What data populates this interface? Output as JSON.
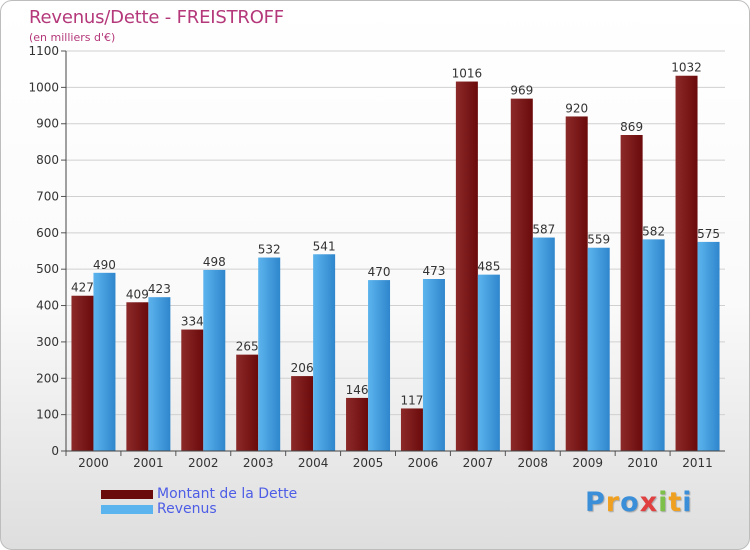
{
  "title": "Revenus/Dette - FREISTROFF",
  "subtitle": "(en milliers d'€)",
  "colors": {
    "dette": "#6b0a0a",
    "dette_light": "#8c2a2a",
    "revenus": "#2f86cc",
    "revenus_light": "#5cb4ee",
    "grid": "#d0d0d0",
    "text": "#333333"
  },
  "legend": {
    "items": [
      {
        "label": "Montant de la Dette"
      },
      {
        "label": "Revenus"
      }
    ]
  },
  "logo": {
    "letters": [
      {
        "ch": "P",
        "color": "#3a8fd8"
      },
      {
        "ch": "r",
        "color": "#f0a020"
      },
      {
        "ch": "o",
        "color": "#3a8fd8"
      },
      {
        "ch": "x",
        "color": "#e04040"
      },
      {
        "ch": "i",
        "color": "#7cc04a"
      },
      {
        "ch": "t",
        "color": "#f0a020"
      },
      {
        "ch": "i",
        "color": "#3a8fd8"
      }
    ]
  },
  "chart_data": {
    "type": "bar",
    "title": "Revenus/Dette - FREISTROFF",
    "subtitle": "(en milliers d'€)",
    "categories": [
      "2000",
      "2001",
      "2002",
      "2003",
      "2004",
      "2005",
      "2006",
      "2007",
      "2008",
      "2009",
      "2010",
      "2011"
    ],
    "series": [
      {
        "name": "Montant de la Dette",
        "values": [
          427,
          409,
          334,
          265,
          206,
          146,
          117,
          1016,
          969,
          920,
          869,
          1032
        ]
      },
      {
        "name": "Revenus",
        "values": [
          490,
          423,
          498,
          532,
          541,
          470,
          473,
          485,
          587,
          559,
          582,
          575
        ]
      }
    ],
    "ylim": [
      0,
      1100
    ],
    "yticks": [
      0,
      100,
      200,
      300,
      400,
      500,
      600,
      700,
      800,
      900,
      1000,
      1100
    ],
    "grid": true,
    "legend_position": "bottom-left"
  }
}
